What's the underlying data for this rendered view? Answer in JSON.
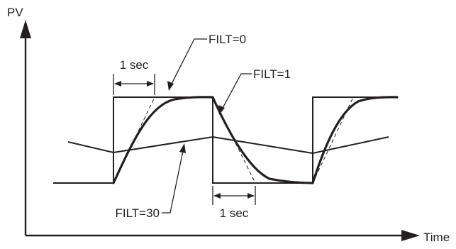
{
  "axes": {
    "y_label": "PV",
    "x_label": "Time"
  },
  "annotations": {
    "filt0": "FILT=0",
    "filt1": "FILT=1",
    "filt30": "FILT=30",
    "interval_rise": "1 sec",
    "interval_fall": "1 sec"
  }
}
